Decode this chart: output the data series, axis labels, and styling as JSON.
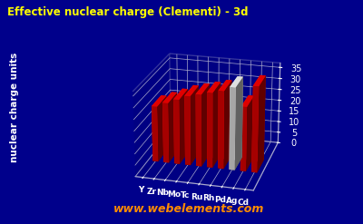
{
  "title": "Effective nuclear charge (Clementi) - 3d",
  "ylabel": "nuclear charge units",
  "elements": [
    "Y",
    "Zr",
    "Nb",
    "Mo",
    "Tc",
    "Ru",
    "Rh",
    "Pd",
    "Ag",
    "Cd"
  ],
  "values": [
    24.85,
    26.84,
    28.82,
    30.81,
    32.03,
    33.26,
    34.5,
    36.48,
    28.57,
    37.85
  ],
  "bar_colors": [
    "#ff0000",
    "#ff0000",
    "#ff0000",
    "#ff0000",
    "#ff0000",
    "#ff0000",
    "#ff0000",
    "#ffffff",
    "#ff0000",
    "#ff0000"
  ],
  "background_color": "#00008b",
  "title_color": "#ffff00",
  "axis_label_color": "#ffffff",
  "tick_color": "#ffffff",
  "grid_color": "#aaaacc",
  "watermark": "www.webelements.com",
  "watermark_color": "#ff8c00",
  "ylim": [
    0,
    37
  ],
  "yticks": [
    0,
    5,
    10,
    15,
    20,
    25,
    30,
    35
  ],
  "elev": 22,
  "azim": -75,
  "bar_width": 0.5,
  "bar_depth": 0.4
}
